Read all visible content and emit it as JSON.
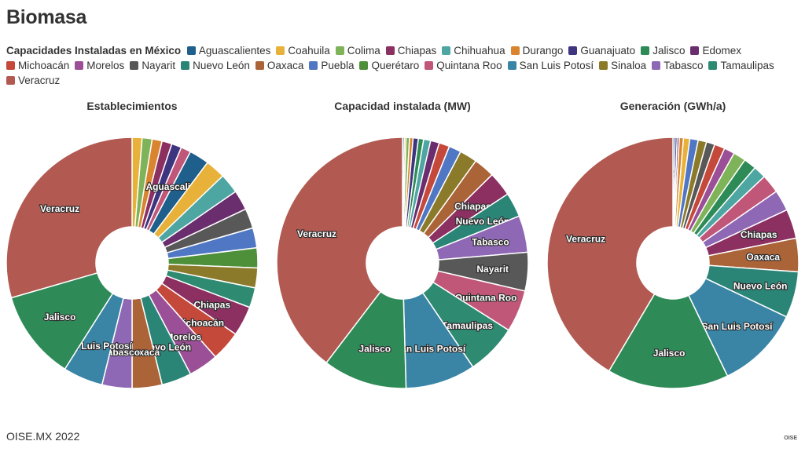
{
  "title": "Biomasa",
  "legend_title": "Capacidades Instaladas en México",
  "footer": "OISE.MX 2022",
  "footer_logo": "OISE",
  "states": [
    {
      "name": "Aguascalientes",
      "color": "#1f5f8b"
    },
    {
      "name": "Coahuila",
      "color": "#e8b23a"
    },
    {
      "name": "Colima",
      "color": "#7fb35a"
    },
    {
      "name": "Chiapas",
      "color": "#8c2f61"
    },
    {
      "name": "Chihuahua",
      "color": "#4ea6a3"
    },
    {
      "name": "Durango",
      "color": "#d9852f"
    },
    {
      "name": "Guanajuato",
      "color": "#3d3580"
    },
    {
      "name": "Jalisco",
      "color": "#2e8b57"
    },
    {
      "name": "Edomex",
      "color": "#6a2d6e"
    },
    {
      "name": "Michoacán",
      "color": "#c4493b"
    },
    {
      "name": "Morelos",
      "color": "#9b4f96"
    },
    {
      "name": "Nayarit",
      "color": "#585858"
    },
    {
      "name": "Nuevo León",
      "color": "#2a8577"
    },
    {
      "name": "Oaxaca",
      "color": "#ab6338"
    },
    {
      "name": "Puebla",
      "color": "#5077c4"
    },
    {
      "name": "Querétaro",
      "color": "#4e8f3a"
    },
    {
      "name": "Quintana Roo",
      "color": "#c05778"
    },
    {
      "name": "San Luis Potosí",
      "color": "#3a85a6"
    },
    {
      "name": "Sinaloa",
      "color": "#8b7a2a"
    },
    {
      "name": "Tabasco",
      "color": "#8f68b5"
    },
    {
      "name": "Tamaulipas",
      "color": "#2f8a72"
    },
    {
      "name": "Veracruz",
      "color": "#b25a52"
    }
  ],
  "chart_data": [
    {
      "type": "pie",
      "title": "Establecimientos",
      "slices": [
        {
          "label": "Coahuila",
          "value": 1
        },
        {
          "label": "Colima",
          "value": 1
        },
        {
          "label": "Durango",
          "value": 1
        },
        {
          "label": "Chiapas",
          "value": 1
        },
        {
          "label": "Guanajuato",
          "value": 1
        },
        {
          "label": "Quintana Roo",
          "value": 1
        },
        {
          "label": "Aguascalientes",
          "value": 2
        },
        {
          "label": "Coahuila",
          "value": 2
        },
        {
          "label": "Chihuahua",
          "value": 2
        },
        {
          "label": "Edomex",
          "value": 2
        },
        {
          "label": "Nayarit",
          "value": 2
        },
        {
          "label": "Puebla",
          "value": 2
        },
        {
          "label": "Querétaro",
          "value": 2
        },
        {
          "label": "Sinaloa",
          "value": 2
        },
        {
          "label": "Tamaulipas",
          "value": 2
        },
        {
          "label": "Chiapas",
          "value": 3
        },
        {
          "label": "Michoacán",
          "value": 3
        },
        {
          "label": "Morelos",
          "value": 3
        },
        {
          "label": "Nuevo León",
          "value": 3
        },
        {
          "label": "Oaxaca",
          "value": 3
        },
        {
          "label": "Tabasco",
          "value": 3
        },
        {
          "label": "San Luis Potosí",
          "value": 4
        },
        {
          "label": "Jalisco",
          "value": 9
        },
        {
          "label": "Veracruz",
          "value": 23
        }
      ]
    },
    {
      "type": "pie",
      "title": "Capacidad instalada (MW)",
      "slices": [
        {
          "label": "Aguascalientes",
          "value": 1
        },
        {
          "label": "Coahuila",
          "value": 1
        },
        {
          "label": "Colima",
          "value": 2
        },
        {
          "label": "Durango",
          "value": 2
        },
        {
          "label": "Guanajuato",
          "value": 3
        },
        {
          "label": "Jalisco",
          "value": 3
        },
        {
          "label": "Chihuahua",
          "value": 4
        },
        {
          "label": "Edomex",
          "value": 5
        },
        {
          "label": "Michoacán",
          "value": 6
        },
        {
          "label": "Puebla",
          "value": 7
        },
        {
          "label": "Sinaloa",
          "value": 10
        },
        {
          "label": "Oaxaca",
          "value": 12
        },
        {
          "label": "Chiapas",
          "value": 14
        },
        {
          "label": "Nuevo León",
          "value": 14
        },
        {
          "label": "Tabasco",
          "value": 21
        },
        {
          "label": "Nayarit",
          "value": 22
        },
        {
          "label": "Quintana Roo",
          "value": 24
        },
        {
          "label": "Tamaulipas",
          "value": 29
        },
        {
          "label": "San Luis Potosí",
          "value": 40
        },
        {
          "label": "Jalisco",
          "value": 48
        },
        {
          "label": "Veracruz",
          "value": 176
        }
      ]
    },
    {
      "type": "pie",
      "title": "Generación (GWh/a)",
      "slices": [
        {
          "label": "Aguascalientes",
          "value": 1
        },
        {
          "label": "Guanajuato",
          "value": 1
        },
        {
          "label": "Edomex",
          "value": 1
        },
        {
          "label": "Durango",
          "value": 2
        },
        {
          "label": "Coahuila",
          "value": 3
        },
        {
          "label": "Puebla",
          "value": 4
        },
        {
          "label": "Sinaloa",
          "value": 4
        },
        {
          "label": "Nayarit",
          "value": 4
        },
        {
          "label": "Michoacán",
          "value": 5
        },
        {
          "label": "Morelos",
          "value": 5
        },
        {
          "label": "Colima",
          "value": 6
        },
        {
          "label": "Jalisco",
          "value": 6
        },
        {
          "label": "Chihuahua",
          "value": 6
        },
        {
          "label": "Quintana Roo",
          "value": 9
        },
        {
          "label": "Tabasco",
          "value": 10
        },
        {
          "label": "Chiapas",
          "value": 14
        },
        {
          "label": "Oaxaca",
          "value": 16
        },
        {
          "label": "Nuevo León",
          "value": 22
        },
        {
          "label": "San Luis Potosí",
          "value": 40
        },
        {
          "label": "Jalisco",
          "value": 58
        },
        {
          "label": "Veracruz",
          "value": 154
        }
      ]
    }
  ]
}
